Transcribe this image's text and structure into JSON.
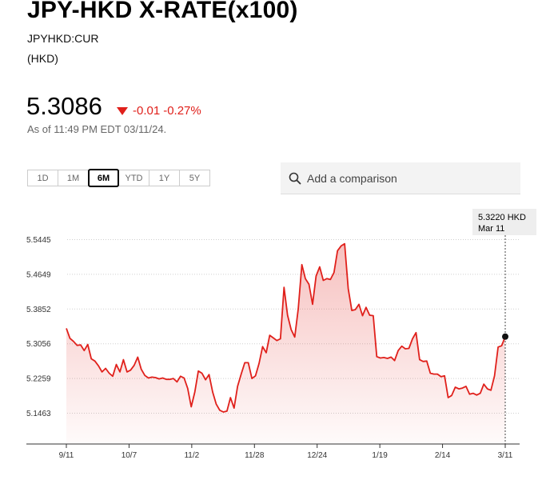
{
  "header": {
    "title": "JPY-HKD X-RATE(x100)",
    "ticker": "JPYHKD:CUR",
    "currency": "(HKD)"
  },
  "quote": {
    "price": "5.3086",
    "change": "-0.01",
    "change_pct": "-0.27%",
    "as_of": "As of 11:49 PM EDT 03/11/24."
  },
  "ranges": {
    "items": [
      "1D",
      "1M",
      "6M",
      "YTD",
      "1Y",
      "5Y"
    ],
    "selected": "6M"
  },
  "compare": {
    "placeholder": "Add a comparison"
  },
  "tooltip": {
    "value": "5.3220 HKD",
    "date": "Mar 11"
  },
  "colors": {
    "line": "#e0201b",
    "change": "#e0201b"
  },
  "chart_data": {
    "type": "area",
    "yticks": [
      "5.5445",
      "5.4649",
      "5.3852",
      "5.3056",
      "5.2259",
      "5.1463"
    ],
    "xticks": [
      "9/11",
      "10/7",
      "11/2",
      "11/28",
      "12/24",
      "1/19",
      "2/14",
      "3/11"
    ],
    "ylim": [
      5.1,
      5.58
    ],
    "grid": "horizontal dotted",
    "series": [
      {
        "values": [
          5.341,
          5.318,
          5.311,
          5.302,
          5.303,
          5.29,
          5.304,
          5.271,
          5.266,
          5.255,
          5.241,
          5.249,
          5.238,
          5.231,
          5.258,
          5.241,
          5.269,
          5.241,
          5.245,
          5.256,
          5.275,
          5.247,
          5.233,
          5.227,
          5.229,
          5.228,
          5.225,
          5.227,
          5.224,
          5.224,
          5.226,
          5.218,
          5.231,
          5.227,
          5.203,
          5.161,
          5.195,
          5.243,
          5.238,
          5.223,
          5.235,
          5.195,
          5.167,
          5.153,
          5.149,
          5.151,
          5.182,
          5.158,
          5.208,
          5.236,
          5.262,
          5.262,
          5.226,
          5.232,
          5.26,
          5.299,
          5.285,
          5.325,
          5.319,
          5.313,
          5.317,
          5.435,
          5.371,
          5.338,
          5.321,
          5.386,
          5.487,
          5.455,
          5.442,
          5.396,
          5.461,
          5.482,
          5.451,
          5.455,
          5.453,
          5.469,
          5.519,
          5.53,
          5.535,
          5.432,
          5.382,
          5.384,
          5.396,
          5.37,
          5.389,
          5.371,
          5.37,
          5.276,
          5.273,
          5.274,
          5.272,
          5.275,
          5.267,
          5.29,
          5.3,
          5.294,
          5.295,
          5.317,
          5.331,
          5.269,
          5.265,
          5.266,
          5.238,
          5.236,
          5.236,
          5.23,
          5.232,
          5.182,
          5.187,
          5.206,
          5.202,
          5.204,
          5.208,
          5.19,
          5.192,
          5.188,
          5.192,
          5.213,
          5.202,
          5.199,
          5.232,
          5.298,
          5.301,
          5.322
        ]
      }
    ],
    "last_value": 5.322,
    "last_date": "Mar 11"
  }
}
